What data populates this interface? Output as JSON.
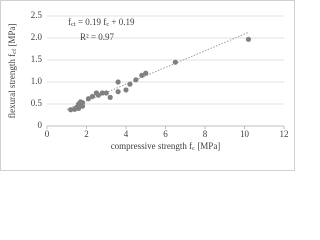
{
  "chart_data": {
    "type": "scatter",
    "x": [
      1.2,
      1.4,
      1.5,
      1.6,
      1.6,
      1.7,
      1.8,
      1.8,
      2.1,
      2.3,
      2.5,
      2.6,
      2.8,
      3.0,
      3.2,
      3.6,
      3.6,
      4.0,
      4.2,
      4.5,
      4.8,
      5.0,
      6.5,
      10.2
    ],
    "values": [
      0.37,
      0.38,
      0.42,
      0.4,
      0.5,
      0.55,
      0.45,
      0.53,
      0.62,
      0.67,
      0.75,
      0.7,
      0.75,
      0.75,
      0.65,
      1.0,
      0.78,
      0.82,
      0.95,
      1.05,
      1.15,
      1.2,
      1.45,
      1.97
    ],
    "color": "#808080",
    "trendline": {
      "slope": 0.19,
      "intercept": 0.19,
      "x": [
        1.0,
        10.2
      ],
      "color": "#9a9a9a"
    },
    "equation": [
      "f",
      "ct",
      " = 0.19 f",
      "c",
      " + 0.19"
    ],
    "r_squared": "R² = 0.97",
    "xlabel": [
      "compressive strength f",
      "c",
      " [MPa]"
    ],
    "ylabel": [
      "flexural strength f",
      "cf",
      " [MPa]"
    ],
    "xlim": [
      0,
      12
    ],
    "xticks": [
      0,
      2,
      4,
      6,
      8,
      10,
      12
    ],
    "ylim": [
      0,
      2.5
    ],
    "yticks": [
      0,
      0.5,
      {
        "value": 1,
        "label": "1.0"
      },
      1.5,
      {
        "value": 2,
        "label": "2.0"
      },
      2.5
    ],
    "grid": true
  }
}
